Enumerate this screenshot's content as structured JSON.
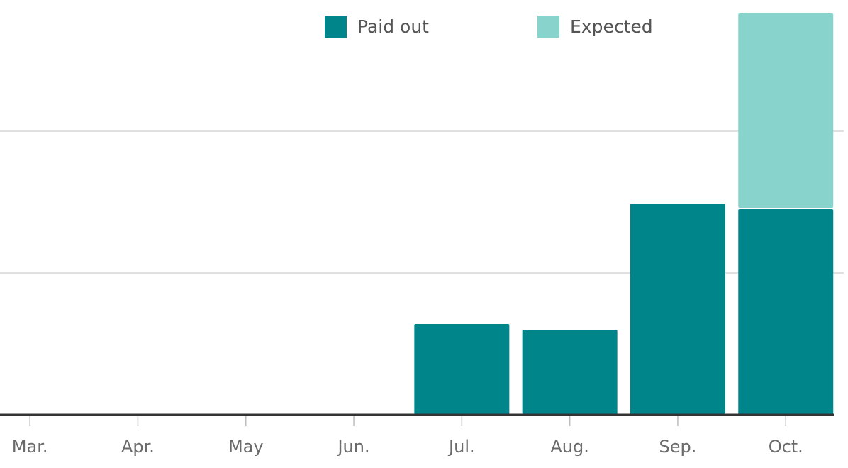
{
  "chart_data": {
    "type": "stacked_bar",
    "categories": [
      "Mar.",
      "Apr.",
      "May",
      "Jun.",
      "Jul.",
      "Aug.",
      "Sep.",
      "Oct."
    ],
    "series": [
      {
        "name": "Paid out",
        "color": "#00868a",
        "values": [
          0,
          0,
          0,
          0,
          0.64,
          0.6,
          1.49,
          1.45
        ]
      },
      {
        "name": "Expected",
        "color": "#88d4cc",
        "values": [
          0,
          0,
          0,
          0,
          0,
          0,
          0,
          1.38
        ]
      }
    ],
    "ylim": [
      0,
      2.925
    ],
    "gridlines": [
      1,
      2
    ],
    "legend": "top"
  }
}
